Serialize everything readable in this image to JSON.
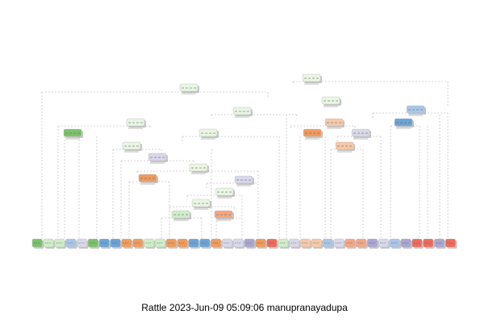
{
  "caption": "Rattle 2023-Jun-09 05:09:06 manupranayadupa",
  "colors": {
    "edge": "#c8c8c8",
    "internal": "#e9f6e3",
    "green_light": "#cfeec8",
    "green_dark": "#79c36a",
    "blue_light": "#a9c6e8",
    "blue": "#6aa3d8",
    "lavender": "#d8d8ea",
    "purple": "#a9a6d2",
    "orange_light": "#f5c9a8",
    "orange": "#f09a5c",
    "red": "#ee6b5c",
    "salmon": "#f4a585",
    "shadow": "#9a9a9a"
  }
}
